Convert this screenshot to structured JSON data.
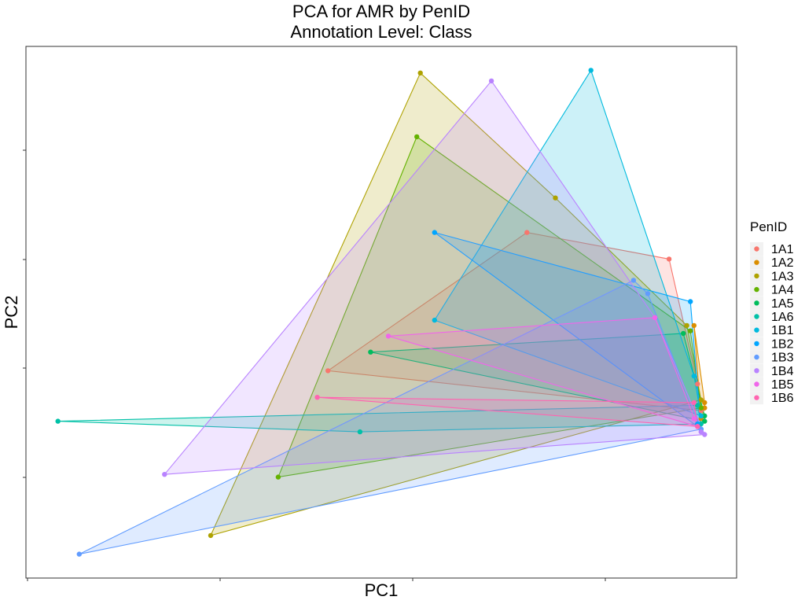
{
  "chart_data": {
    "type": "scatter",
    "title": "PCA for AMR by PenID",
    "subtitle": "Annotation Level: Class",
    "xlabel": "PC1",
    "ylabel": "PC2",
    "x_range": [
      0,
      100
    ],
    "y_range": [
      0,
      100
    ],
    "grid": false,
    "legend_title": "PenID",
    "legend_position": "right",
    "series": [
      {
        "name": "1A1",
        "color": "#F8766D",
        "points": [
          [
            42.5,
            39.0
          ],
          [
            70.5,
            65.0
          ],
          [
            90.5,
            60.0
          ],
          [
            94.5,
            36.5
          ],
          [
            95.0,
            31.5
          ]
        ]
      },
      {
        "name": "1A2",
        "color": "#DB8E00",
        "points": [
          [
            94.0,
            47.5
          ],
          [
            95.5,
            33.0
          ],
          [
            95.5,
            32.0
          ],
          [
            95.0,
            30.0
          ]
        ]
      },
      {
        "name": "1A3",
        "color": "#AEA200",
        "points": [
          [
            26.0,
            8.0
          ],
          [
            55.5,
            95.0
          ],
          [
            74.5,
            71.5
          ],
          [
            93.0,
            47.5
          ],
          [
            95.0,
            33.5
          ]
        ]
      },
      {
        "name": "1A4",
        "color": "#64B200",
        "points": [
          [
            35.5,
            19.0
          ],
          [
            55.0,
            83.0
          ],
          [
            93.5,
            46.5
          ],
          [
            95.0,
            32.0
          ]
        ]
      },
      {
        "name": "1A5",
        "color": "#00BD5C",
        "points": [
          [
            48.5,
            42.5
          ],
          [
            92.5,
            46.0
          ],
          [
            95.5,
            30.5
          ],
          [
            95.5,
            29.5
          ]
        ]
      },
      {
        "name": "1A6",
        "color": "#00C1A7",
        "points": [
          [
            4.5,
            29.5
          ],
          [
            47.0,
            27.5
          ],
          [
            94.5,
            32.5
          ],
          [
            95.0,
            29.0
          ]
        ]
      },
      {
        "name": "1B1",
        "color": "#00BADE",
        "points": [
          [
            57.5,
            48.5
          ],
          [
            79.5,
            95.5
          ],
          [
            94.0,
            38.0
          ],
          [
            95.0,
            30.5
          ]
        ]
      },
      {
        "name": "1B2",
        "color": "#00A6FF",
        "points": [
          [
            57.5,
            65.0
          ],
          [
            93.5,
            52.0
          ],
          [
            94.5,
            29.0
          ],
          [
            95.0,
            28.0
          ]
        ]
      },
      {
        "name": "1B3",
        "color": "#619CFF",
        "points": [
          [
            7.5,
            4.5
          ],
          [
            85.5,
            56.0
          ],
          [
            87.5,
            53.5
          ],
          [
            95.0,
            28.0
          ]
        ]
      },
      {
        "name": "1B4",
        "color": "#B983FF",
        "points": [
          [
            19.5,
            19.5
          ],
          [
            65.5,
            93.5
          ],
          [
            88.5,
            49.0
          ],
          [
            95.5,
            27.0
          ],
          [
            95.0,
            27.5
          ]
        ]
      },
      {
        "name": "1B5",
        "color": "#F066EA",
        "points": [
          [
            51.0,
            45.5
          ],
          [
            88.5,
            49.0
          ],
          [
            94.0,
            30.0
          ],
          [
            94.5,
            28.5
          ]
        ]
      },
      {
        "name": "1B6",
        "color": "#FF64B0",
        "points": [
          [
            41.0,
            34.0
          ],
          [
            94.0,
            33.0
          ],
          [
            94.5,
            28.5
          ]
        ]
      }
    ]
  }
}
